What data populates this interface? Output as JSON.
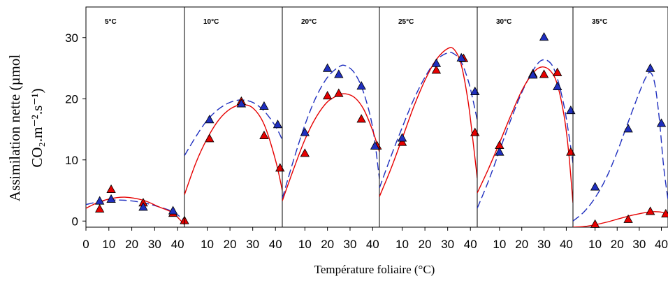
{
  "chart_data": {
    "type": "scatter",
    "ylabel_line1": "Assimilation nette (µmol",
    "ylabel_line2": "CO₂.m⁻².s⁻¹)",
    "xlabel": "Température foliaire (°C)",
    "ylim": [
      -1,
      35
    ],
    "xlim": [
      0,
      43
    ],
    "yticks": [
      0,
      10,
      20,
      30
    ],
    "xticks_first_panel": [
      0,
      10,
      20,
      30,
      40
    ],
    "xticks_other_panels": [
      10,
      20,
      30,
      40
    ],
    "grid": false,
    "colors": {
      "red": "#e60000",
      "blue": "#1f2fbf"
    },
    "panels": [
      {
        "title": "5°C",
        "red_points": [
          [
            6,
            2
          ],
          [
            11,
            5.2
          ],
          [
            25,
            3
          ],
          [
            38,
            1.3
          ],
          [
            43,
            0.1
          ]
        ],
        "blue_points": [
          [
            6,
            3.3
          ],
          [
            11,
            3.6
          ],
          [
            25,
            2.3
          ],
          [
            38,
            1.7
          ]
        ],
        "red_curve": [
          [
            0,
            2.1
          ],
          [
            5,
            3
          ],
          [
            10,
            3.6
          ],
          [
            17,
            3.9
          ],
          [
            25,
            3.4
          ],
          [
            32,
            2.3
          ],
          [
            38,
            1.3
          ],
          [
            43,
            -0.6
          ]
        ],
        "blue_curve": [
          [
            0,
            2.7
          ],
          [
            5,
            3.1
          ],
          [
            10,
            3.4
          ],
          [
            17,
            3.4
          ],
          [
            25,
            3.0
          ],
          [
            32,
            2.3
          ],
          [
            38,
            1.5
          ],
          [
            43,
            0.1
          ]
        ]
      },
      {
        "title": "10°C",
        "red_points": [
          [
            11,
            13.5
          ],
          [
            25,
            19.6
          ],
          [
            35,
            14
          ],
          [
            42,
            8.7
          ]
        ],
        "blue_points": [
          [
            11,
            16.6
          ],
          [
            25,
            19.2
          ],
          [
            35,
            18.8
          ],
          [
            41,
            15.8
          ]
        ],
        "red_curve": [
          [
            0,
            4.3
          ],
          [
            5,
            9.5
          ],
          [
            10,
            13.5
          ],
          [
            15,
            16.5
          ],
          [
            20,
            18.3
          ],
          [
            25,
            19.0
          ],
          [
            30,
            18.5
          ],
          [
            35,
            15.8
          ],
          [
            40,
            10.0
          ],
          [
            43,
            5.0
          ]
        ],
        "blue_curve": [
          [
            0,
            10.7
          ],
          [
            5,
            13.8
          ],
          [
            10,
            16.5
          ],
          [
            15,
            18.3
          ],
          [
            20,
            19.4
          ],
          [
            25,
            19.8
          ],
          [
            30,
            19.4
          ],
          [
            35,
            18.0
          ],
          [
            40,
            15.5
          ],
          [
            43,
            13.3
          ]
        ]
      },
      {
        "title": "20°C",
        "red_points": [
          [
            10,
            11.1
          ],
          [
            20,
            20.5
          ],
          [
            25,
            20.9
          ],
          [
            35,
            16.7
          ],
          [
            42,
            12.3
          ]
        ],
        "blue_points": [
          [
            10,
            14.5
          ],
          [
            20,
            25
          ],
          [
            25,
            24
          ],
          [
            35,
            22.1
          ],
          [
            41,
            12.3
          ]
        ],
        "red_curve": [
          [
            0,
            3.3
          ],
          [
            5,
            8.5
          ],
          [
            10,
            13.3
          ],
          [
            15,
            17.0
          ],
          [
            20,
            19.5
          ],
          [
            25,
            20.6
          ],
          [
            28,
            20.8
          ],
          [
            32,
            20.2
          ],
          [
            36,
            18.3
          ],
          [
            40,
            14.8
          ],
          [
            43,
            11.3
          ]
        ],
        "blue_curve": [
          [
            0,
            3.7
          ],
          [
            5,
            10.0
          ],
          [
            10,
            15.7
          ],
          [
            15,
            20.3
          ],
          [
            20,
            23.5
          ],
          [
            25,
            25.2
          ],
          [
            28,
            25.4
          ],
          [
            32,
            24.2
          ],
          [
            36,
            21.0
          ],
          [
            40,
            15.3
          ],
          [
            43,
            6.9
          ]
        ]
      },
      {
        "title": "25°C",
        "red_points": [
          [
            10,
            12.9
          ],
          [
            25,
            24.7
          ],
          [
            37,
            26.6
          ],
          [
            42,
            14.5
          ]
        ],
        "blue_points": [
          [
            10,
            13.6
          ],
          [
            25,
            25.8
          ],
          [
            36,
            26.7
          ],
          [
            42,
            21.2
          ]
        ],
        "red_curve": [
          [
            0,
            4
          ],
          [
            5,
            8.5
          ],
          [
            10,
            13.5
          ],
          [
            15,
            18.6
          ],
          [
            20,
            23.0
          ],
          [
            25,
            26.4
          ],
          [
            30,
            28.2
          ],
          [
            33,
            28.0
          ],
          [
            36,
            25.5
          ],
          [
            39,
            19.5
          ],
          [
            41,
            13.5
          ],
          [
            43,
            7.0
          ]
        ],
        "blue_curve": [
          [
            0,
            5.4
          ],
          [
            5,
            10.5
          ],
          [
            10,
            15.3
          ],
          [
            15,
            19.8
          ],
          [
            20,
            23.5
          ],
          [
            25,
            26.3
          ],
          [
            30,
            27.5
          ],
          [
            33,
            27.3
          ],
          [
            36,
            26.0
          ],
          [
            39,
            23.0
          ],
          [
            41,
            20.0
          ],
          [
            43,
            16.5
          ]
        ]
      },
      {
        "title": "30°C",
        "red_points": [
          [
            10,
            12.4
          ],
          [
            25,
            24.1
          ],
          [
            30,
            24
          ],
          [
            36,
            24.3
          ],
          [
            42,
            11.3
          ]
        ],
        "blue_points": [
          [
            10,
            11.3
          ],
          [
            25,
            23.9
          ],
          [
            30,
            30.1
          ],
          [
            36,
            22
          ],
          [
            42,
            18.1
          ]
        ],
        "red_curve": [
          [
            0,
            4.6
          ],
          [
            5,
            8.5
          ],
          [
            10,
            12.8
          ],
          [
            15,
            17.2
          ],
          [
            20,
            21.3
          ],
          [
            25,
            24.2
          ],
          [
            29,
            25.2
          ],
          [
            33,
            24.5
          ],
          [
            36,
            22.3
          ],
          [
            39,
            17.2
          ],
          [
            41,
            11.5
          ],
          [
            43,
            3.0
          ]
        ],
        "blue_curve": [
          [
            0,
            2.1
          ],
          [
            5,
            6.5
          ],
          [
            10,
            11.5
          ],
          [
            15,
            16.5
          ],
          [
            20,
            21.0
          ],
          [
            25,
            24.6
          ],
          [
            29,
            26.3
          ],
          [
            33,
            25.8
          ],
          [
            36,
            23.3
          ],
          [
            39,
            18.8
          ],
          [
            41,
            14.5
          ],
          [
            43,
            9.5
          ]
        ]
      },
      {
        "title": "35°C",
        "red_points": [
          [
            10,
            -0.5
          ],
          [
            25,
            0.3
          ],
          [
            35,
            1.6
          ],
          [
            42,
            1.2
          ]
        ],
        "blue_points": [
          [
            10,
            5.6
          ],
          [
            25,
            15.1
          ],
          [
            35,
            25
          ],
          [
            40,
            16
          ]
        ],
        "red_curve": [
          [
            0,
            -1
          ],
          [
            5,
            -0.9
          ],
          [
            10,
            -0.6
          ],
          [
            15,
            -0.2
          ],
          [
            20,
            0.3
          ],
          [
            25,
            0.8
          ],
          [
            30,
            1.2
          ],
          [
            35,
            1.5
          ],
          [
            39,
            1.5
          ],
          [
            43,
            1.2
          ]
        ],
        "blue_curve": [
          [
            0,
            0
          ],
          [
            5,
            1.5
          ],
          [
            10,
            3.8
          ],
          [
            15,
            7.0
          ],
          [
            20,
            11.3
          ],
          [
            25,
            16.2
          ],
          [
            30,
            21.0
          ],
          [
            33,
            23.5
          ],
          [
            35,
            24.3
          ],
          [
            37,
            22.5
          ],
          [
            39,
            17.0
          ],
          [
            41,
            9.0
          ],
          [
            43,
            3.5
          ]
        ]
      }
    ]
  }
}
